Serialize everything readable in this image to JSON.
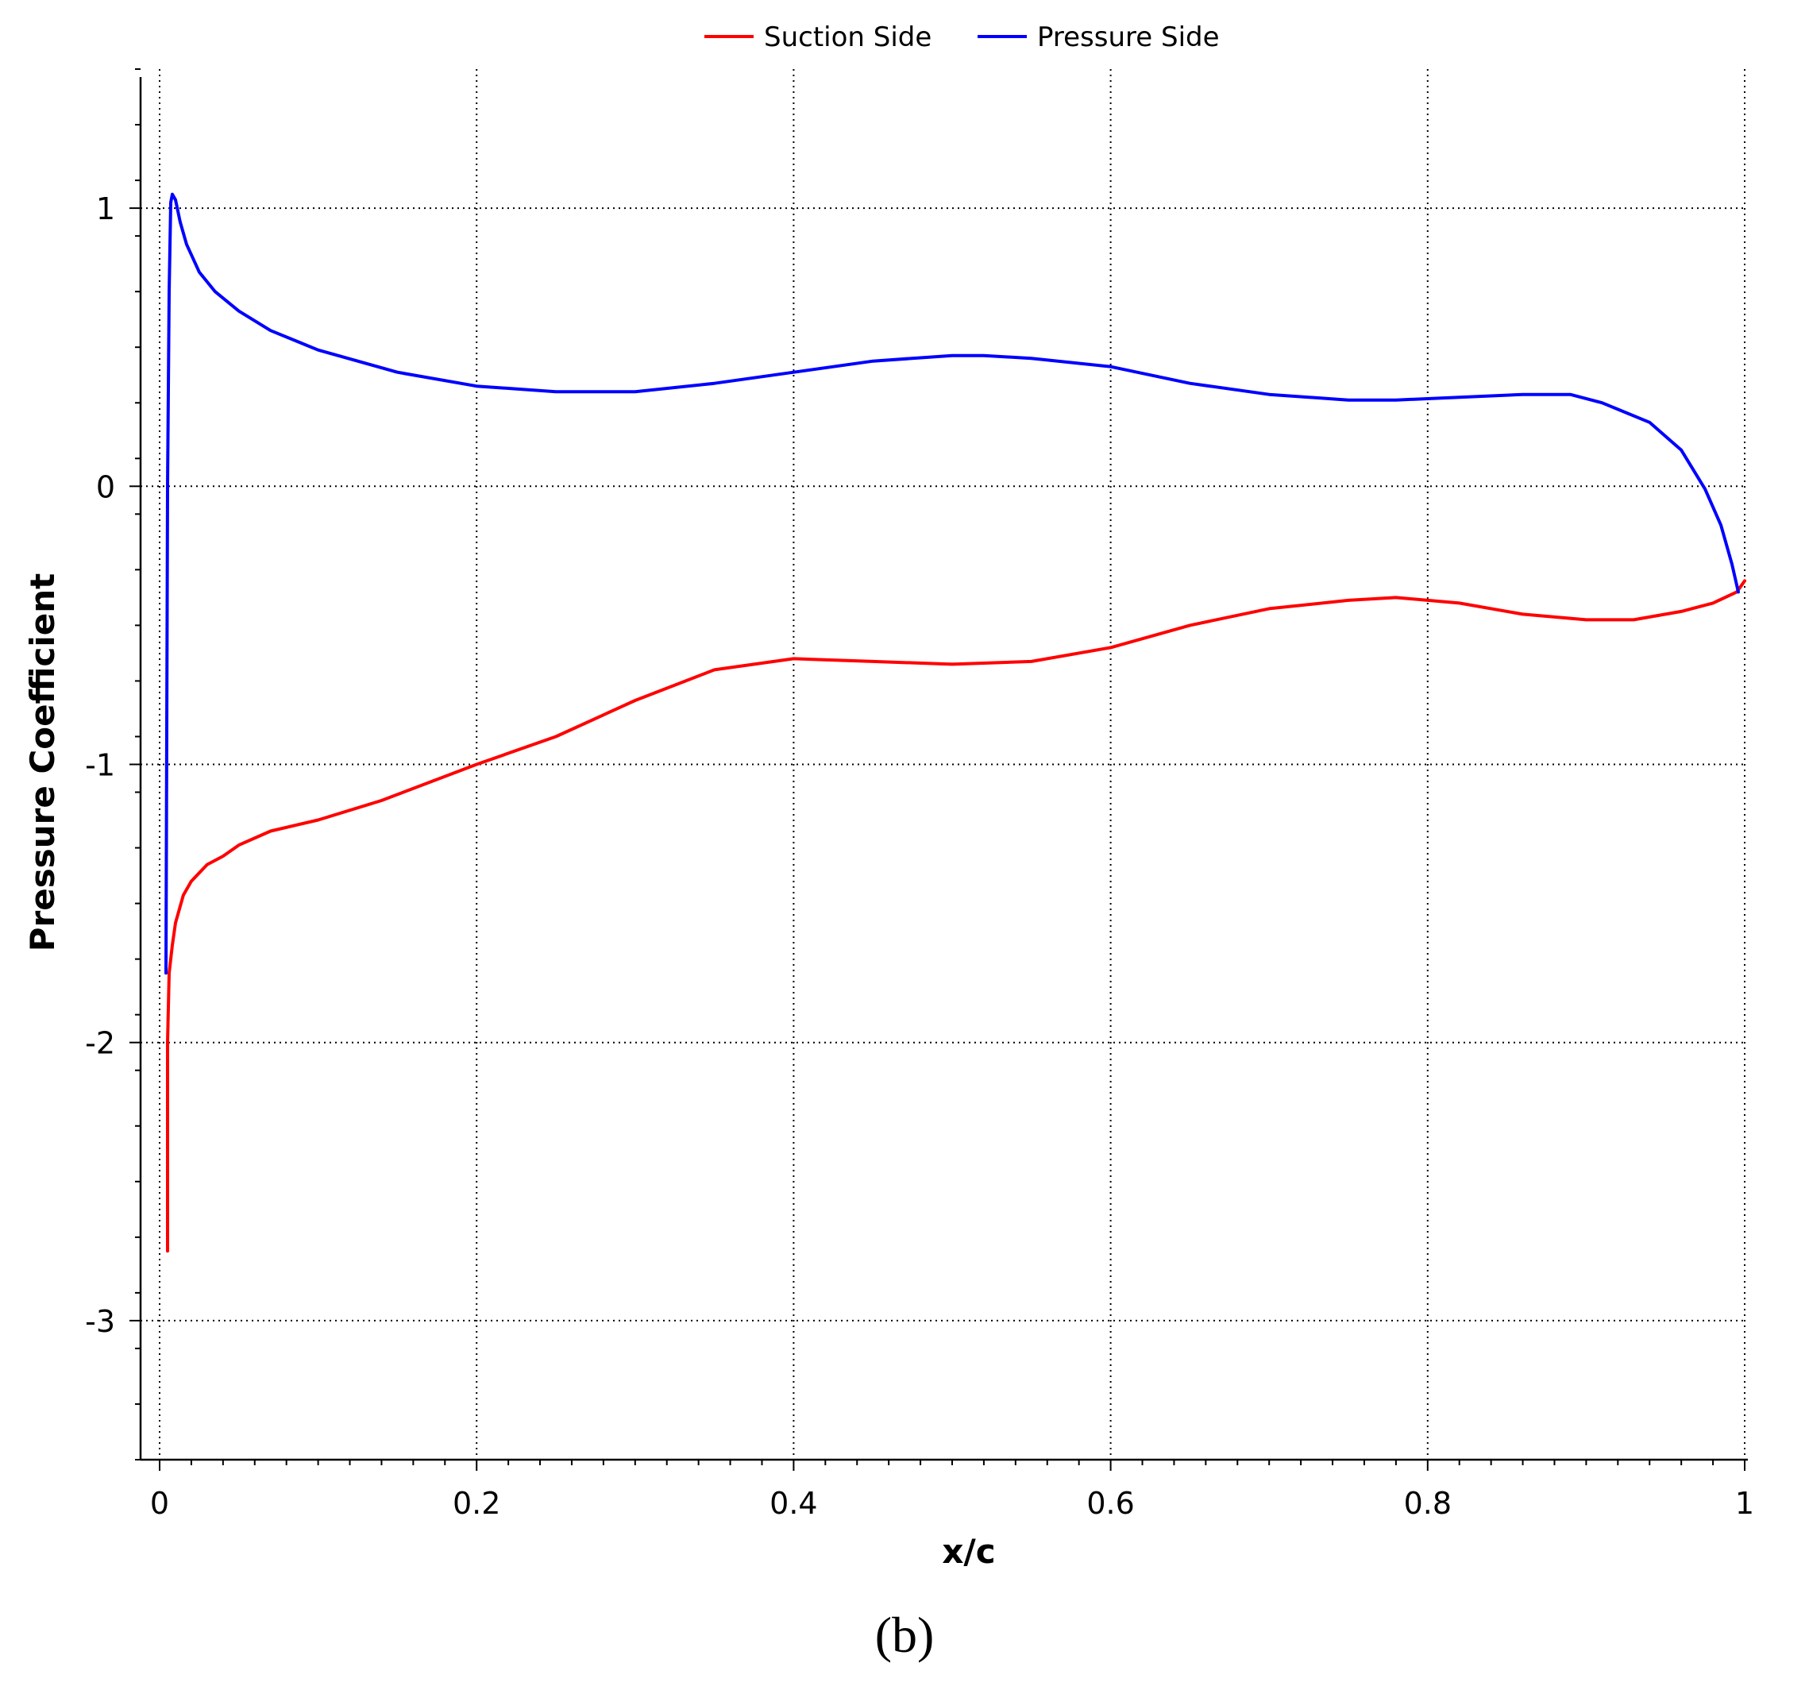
{
  "chart_data": {
    "type": "line",
    "xlabel": "x/c",
    "ylabel": "Pressure Coefficient",
    "xlim": [
      0,
      1
    ],
    "ylim": [
      -3.5,
      1.5
    ],
    "x_ticks": [
      "0",
      "0.2",
      "0.4",
      "0.6",
      "0.8",
      "1"
    ],
    "x_tick_values": [
      0,
      0.2,
      0.4,
      0.6,
      0.8,
      1
    ],
    "y_ticks": [
      "1",
      "0",
      "-1",
      "-2",
      "-3"
    ],
    "y_tick_values": [
      1,
      0,
      -1,
      -2,
      -3
    ],
    "grid": true,
    "legend_position": "top-center",
    "panel_label": "(b)",
    "series": [
      {
        "name": "Suction Side",
        "color": "#ff0000",
        "x": [
          0.005,
          0.005,
          0.006,
          0.008,
          0.01,
          0.015,
          0.02,
          0.03,
          0.04,
          0.05,
          0.07,
          0.1,
          0.14,
          0.2,
          0.25,
          0.3,
          0.35,
          0.4,
          0.45,
          0.5,
          0.55,
          0.6,
          0.65,
          0.7,
          0.75,
          0.78,
          0.82,
          0.86,
          0.9,
          0.93,
          0.96,
          0.98,
          0.995,
          1.0
        ],
        "y": [
          -2.75,
          -2.0,
          -1.75,
          -1.65,
          -1.57,
          -1.47,
          -1.42,
          -1.36,
          -1.33,
          -1.29,
          -1.24,
          -1.2,
          -1.13,
          -1.0,
          -0.9,
          -0.77,
          -0.66,
          -0.62,
          -0.63,
          -0.64,
          -0.63,
          -0.58,
          -0.5,
          -0.44,
          -0.41,
          -0.4,
          -0.42,
          -0.46,
          -0.48,
          -0.48,
          -0.45,
          -0.42,
          -0.38,
          -0.34
        ]
      },
      {
        "name": "Pressure Side",
        "color": "#0000ff",
        "x": [
          0.004,
          0.005,
          0.006,
          0.007,
          0.008,
          0.01,
          0.013,
          0.017,
          0.025,
          0.035,
          0.05,
          0.07,
          0.1,
          0.15,
          0.2,
          0.25,
          0.3,
          0.35,
          0.4,
          0.45,
          0.5,
          0.52,
          0.55,
          0.6,
          0.65,
          0.7,
          0.75,
          0.78,
          0.82,
          0.86,
          0.89,
          0.91,
          0.94,
          0.96,
          0.975,
          0.985,
          0.992,
          0.996
        ],
        "y": [
          -1.75,
          0.0,
          0.7,
          1.02,
          1.05,
          1.03,
          0.95,
          0.87,
          0.77,
          0.7,
          0.63,
          0.56,
          0.49,
          0.41,
          0.36,
          0.34,
          0.34,
          0.37,
          0.41,
          0.45,
          0.47,
          0.47,
          0.46,
          0.43,
          0.37,
          0.33,
          0.31,
          0.31,
          0.32,
          0.33,
          0.33,
          0.3,
          0.23,
          0.13,
          -0.01,
          -0.14,
          -0.28,
          -0.38
        ]
      }
    ]
  }
}
